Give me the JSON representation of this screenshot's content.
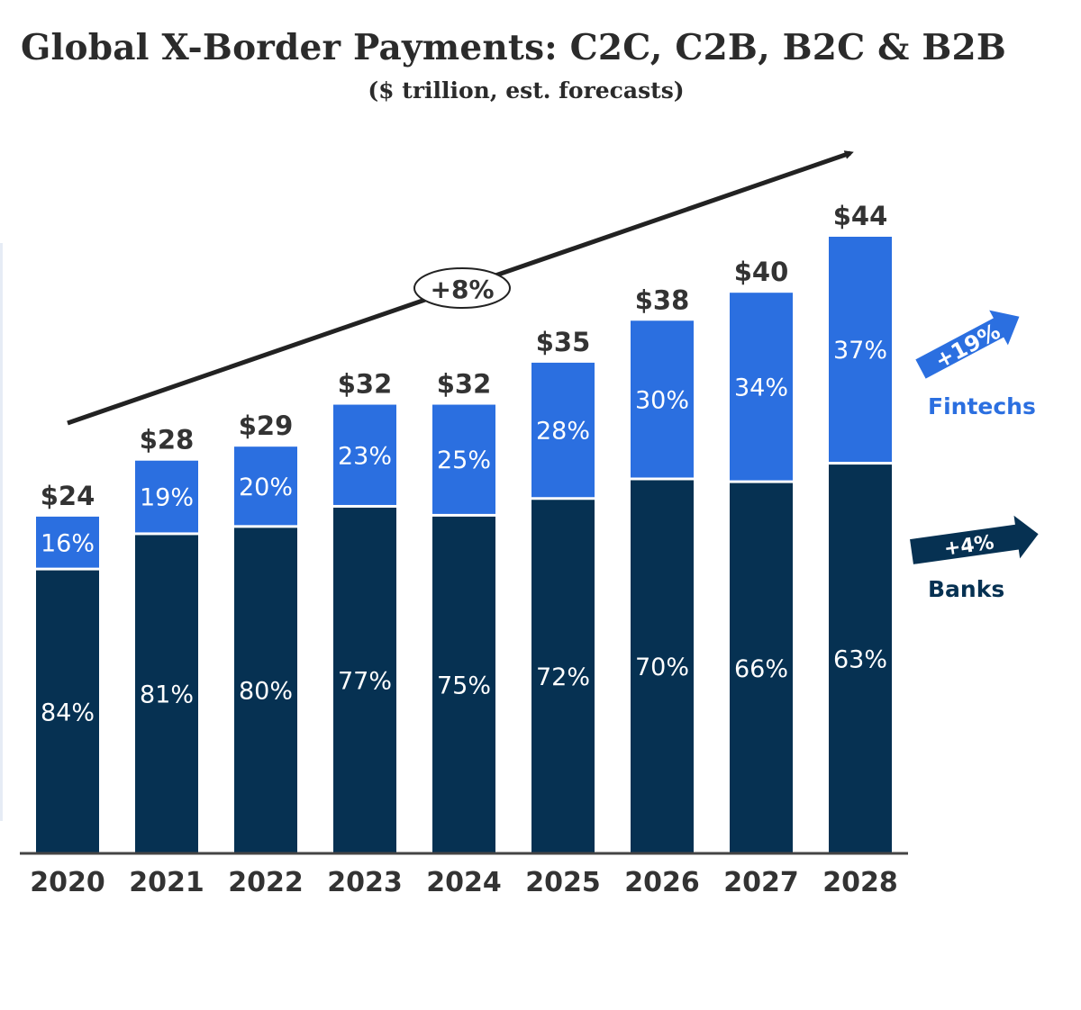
{
  "chart_data": {
    "type": "bar",
    "stacked": true,
    "title": "Global X-Border Payments: C2C, C2B, B2C & B2B",
    "subtitle": "($ trillion, est. forecasts)",
    "categories": [
      "2020",
      "2021",
      "2022",
      "2023",
      "2024",
      "2025",
      "2026",
      "2027",
      "2028"
    ],
    "totals": [
      24,
      28,
      29,
      32,
      32,
      35,
      38,
      40,
      44
    ],
    "total_labels": [
      "$24",
      "$28",
      "$29",
      "$32",
      "$32",
      "$35",
      "$38",
      "$40",
      "$44"
    ],
    "series": [
      {
        "name": "Banks",
        "color": "#063152",
        "share_percent": [
          84,
          81,
          80,
          77,
          75,
          72,
          70,
          66,
          63
        ],
        "labels": [
          "84%",
          "81%",
          "80%",
          "77%",
          "75%",
          "72%",
          "70%",
          "66%",
          "63%"
        ]
      },
      {
        "name": "Fintechs",
        "color": "#2b6fe0",
        "share_percent": [
          16,
          19,
          20,
          23,
          25,
          28,
          30,
          34,
          37
        ],
        "labels": [
          "16%",
          "19%",
          "20%",
          "23%",
          "25%",
          "28%",
          "30%",
          "34%",
          "37%"
        ]
      }
    ],
    "ylim": [
      0,
      44
    ],
    "grid": false,
    "legend_placement": "right",
    "annotations": {
      "overall_growth": "+8%",
      "fintech_growth": "+19%",
      "bank_growth": "+4%"
    }
  }
}
